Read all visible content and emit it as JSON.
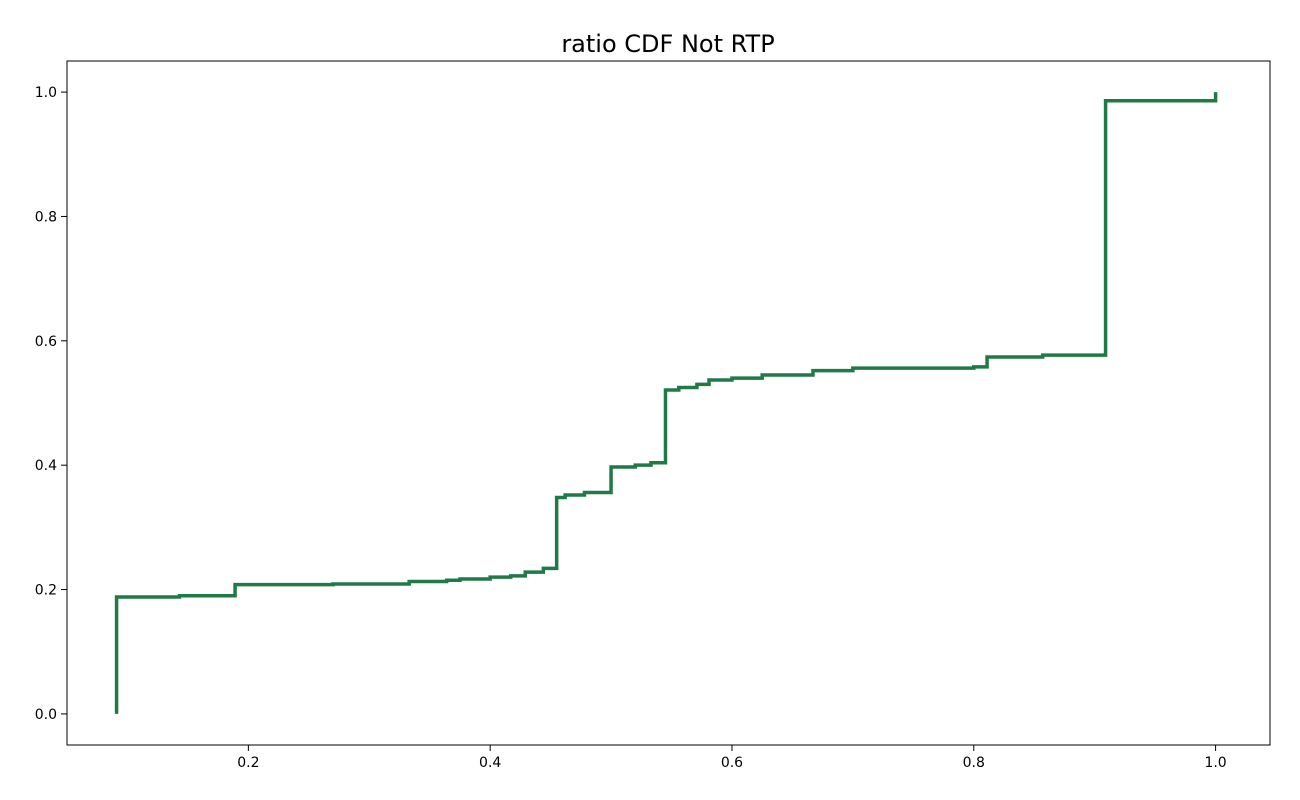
{
  "chart_data": {
    "type": "line",
    "title": "ratio CDF Not RTP",
    "xlabel": "",
    "ylabel": "",
    "xlim": [
      0.05,
      1.045
    ],
    "ylim": [
      -0.05,
      1.05
    ],
    "xticks": [
      0.2,
      0.4,
      0.6,
      0.8,
      1.0
    ],
    "xtick_labels": [
      "0.2",
      "0.4",
      "0.6",
      "0.8",
      "1.0"
    ],
    "yticks": [
      0.0,
      0.2,
      0.4,
      0.6,
      0.8,
      1.0
    ],
    "ytick_labels": [
      "0.0",
      "0.2",
      "0.4",
      "0.6",
      "0.8",
      "1.0"
    ],
    "grid": false,
    "step": true,
    "line_color": "#1f7a45",
    "series": [
      {
        "x": [
          0.091,
          0.091,
          0.143,
          0.189,
          0.189,
          0.27,
          0.333,
          0.333,
          0.364,
          0.375,
          0.4,
          0.417,
          0.429,
          0.444,
          0.455,
          0.455,
          0.462,
          0.478,
          0.5,
          0.5,
          0.52,
          0.533,
          0.545,
          0.545,
          0.556,
          0.571,
          0.581,
          0.6,
          0.625,
          0.667,
          0.7,
          0.8,
          0.811,
          0.811,
          0.857,
          0.909,
          0.909,
          1.0,
          1.0
        ],
        "y": [
          0.0,
          0.188,
          0.19,
          0.19,
          0.208,
          0.209,
          0.21,
          0.213,
          0.215,
          0.217,
          0.22,
          0.222,
          0.228,
          0.234,
          0.237,
          0.348,
          0.352,
          0.356,
          0.36,
          0.397,
          0.4,
          0.404,
          0.41,
          0.521,
          0.525,
          0.53,
          0.537,
          0.54,
          0.545,
          0.552,
          0.556,
          0.558,
          0.558,
          0.574,
          0.577,
          0.578,
          0.986,
          0.986,
          1.0
        ]
      }
    ]
  }
}
